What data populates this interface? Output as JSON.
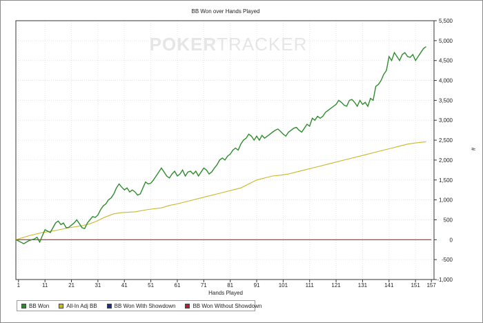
{
  "chart_data": {
    "type": "line",
    "title": "BB Won over Hands Played",
    "xlabel": "Hands Played",
    "ylabel": "#",
    "xlim": [
      0,
      158
    ],
    "ylim": [
      -1000,
      5500
    ],
    "x_ticks": [
      1,
      11,
      21,
      31,
      41,
      51,
      61,
      71,
      81,
      91,
      101,
      111,
      121,
      131,
      141,
      151,
      157
    ],
    "y_ticks": [
      "5,500",
      "5,000",
      "4,500",
      "4,000",
      "3,500",
      "3,000",
      "2,500",
      "2,000",
      "1,500",
      "1,000",
      "500",
      "0",
      "-500",
      "-1,000"
    ],
    "y_tick_values": [
      5500,
      5000,
      4500,
      4000,
      3500,
      3000,
      2500,
      2000,
      1500,
      1000,
      500,
      0,
      -500,
      -1000
    ],
    "legend_position": "bottom-left",
    "grid": true,
    "series": [
      {
        "name": "BB Won",
        "color": "#2e8b2e",
        "points": [
          [
            0,
            0
          ],
          [
            3,
            -100
          ],
          [
            5,
            -20
          ],
          [
            7,
            20
          ],
          [
            8,
            60
          ],
          [
            9,
            -60
          ],
          [
            10,
            100
          ],
          [
            11,
            250
          ],
          [
            13,
            180
          ],
          [
            15,
            420
          ],
          [
            16,
            470
          ],
          [
            17,
            380
          ],
          [
            18,
            420
          ],
          [
            19,
            300
          ],
          [
            20,
            310
          ],
          [
            22,
            420
          ],
          [
            23,
            500
          ],
          [
            24,
            400
          ],
          [
            25,
            300
          ],
          [
            26,
            280
          ],
          [
            27,
            420
          ],
          [
            28,
            500
          ],
          [
            29,
            580
          ],
          [
            30,
            560
          ],
          [
            31,
            620
          ],
          [
            32,
            750
          ],
          [
            33,
            850
          ],
          [
            34,
            900
          ],
          [
            35,
            1000
          ],
          [
            36,
            1050
          ],
          [
            37,
            1150
          ],
          [
            38,
            1300
          ],
          [
            39,
            1400
          ],
          [
            40,
            1320
          ],
          [
            41,
            1250
          ],
          [
            42,
            1300
          ],
          [
            43,
            1200
          ],
          [
            44,
            1250
          ],
          [
            45,
            1200
          ],
          [
            46,
            1120
          ],
          [
            47,
            1150
          ],
          [
            48,
            1300
          ],
          [
            49,
            1450
          ],
          [
            50,
            1400
          ],
          [
            51,
            1420
          ],
          [
            52,
            1500
          ],
          [
            53,
            1600
          ],
          [
            54,
            1700
          ],
          [
            55,
            1800
          ],
          [
            56,
            1700
          ],
          [
            57,
            1600
          ],
          [
            58,
            1550
          ],
          [
            59,
            1650
          ],
          [
            60,
            1720
          ],
          [
            61,
            1600
          ],
          [
            62,
            1650
          ],
          [
            63,
            1750
          ],
          [
            64,
            1600
          ],
          [
            65,
            1700
          ],
          [
            66,
            1720
          ],
          [
            67,
            1650
          ],
          [
            68,
            1720
          ],
          [
            69,
            1600
          ],
          [
            70,
            1700
          ],
          [
            71,
            1800
          ],
          [
            72,
            1750
          ],
          [
            73,
            1650
          ],
          [
            74,
            1700
          ],
          [
            75,
            1800
          ],
          [
            76,
            1880
          ],
          [
            77,
            2000
          ],
          [
            78,
            2050
          ],
          [
            79,
            2000
          ],
          [
            80,
            2100
          ],
          [
            81,
            2150
          ],
          [
            82,
            2250
          ],
          [
            83,
            2300
          ],
          [
            84,
            2250
          ],
          [
            85,
            2400
          ],
          [
            86,
            2500
          ],
          [
            87,
            2550
          ],
          [
            88,
            2650
          ],
          [
            89,
            2600
          ],
          [
            90,
            2500
          ],
          [
            91,
            2600
          ],
          [
            92,
            2500
          ],
          [
            93,
            2620
          ],
          [
            94,
            2550
          ],
          [
            95,
            2600
          ],
          [
            96,
            2650
          ],
          [
            97,
            2700
          ],
          [
            98,
            2750
          ],
          [
            99,
            2780
          ],
          [
            100,
            2720
          ],
          [
            101,
            2650
          ],
          [
            102,
            2600
          ],
          [
            103,
            2700
          ],
          [
            104,
            2750
          ],
          [
            105,
            2800
          ],
          [
            106,
            2820
          ],
          [
            107,
            2750
          ],
          [
            108,
            2700
          ],
          [
            109,
            2800
          ],
          [
            110,
            2900
          ],
          [
            111,
            2850
          ],
          [
            112,
            3050
          ],
          [
            113,
            3000
          ],
          [
            114,
            3100
          ],
          [
            115,
            3050
          ],
          [
            116,
            3100
          ],
          [
            117,
            3200
          ],
          [
            118,
            3250
          ],
          [
            119,
            3300
          ],
          [
            120,
            3350
          ],
          [
            121,
            3400
          ],
          [
            122,
            3500
          ],
          [
            123,
            3450
          ],
          [
            124,
            3380
          ],
          [
            125,
            3350
          ],
          [
            126,
            3500
          ],
          [
            127,
            3520
          ],
          [
            128,
            3450
          ],
          [
            129,
            3350
          ],
          [
            130,
            3500
          ],
          [
            131,
            3400
          ],
          [
            132,
            3450
          ],
          [
            133,
            3350
          ],
          [
            134,
            3550
          ],
          [
            135,
            3500
          ],
          [
            136,
            3850
          ],
          [
            137,
            3900
          ],
          [
            138,
            4000
          ],
          [
            139,
            4150
          ],
          [
            140,
            4250
          ],
          [
            141,
            4600
          ],
          [
            142,
            4500
          ],
          [
            143,
            4700
          ],
          [
            144,
            4600
          ],
          [
            145,
            4500
          ],
          [
            146,
            4650
          ],
          [
            147,
            4700
          ],
          [
            148,
            4600
          ],
          [
            149,
            4580
          ],
          [
            150,
            4650
          ],
          [
            151,
            4500
          ],
          [
            152,
            4600
          ],
          [
            153,
            4700
          ],
          [
            154,
            4800
          ],
          [
            155,
            4850
          ]
        ]
      },
      {
        "name": "All-In Adj BB",
        "color": "#c8b828",
        "points": [
          [
            0,
            0
          ],
          [
            5,
            100
          ],
          [
            10,
            180
          ],
          [
            15,
            230
          ],
          [
            20,
            300
          ],
          [
            25,
            350
          ],
          [
            28,
            400
          ],
          [
            30,
            450
          ],
          [
            31,
            480
          ],
          [
            33,
            550
          ],
          [
            35,
            600
          ],
          [
            37,
            650
          ],
          [
            40,
            680
          ],
          [
            45,
            700
          ],
          [
            50,
            760
          ],
          [
            55,
            800
          ],
          [
            58,
            860
          ],
          [
            61,
            900
          ],
          [
            64,
            950
          ],
          [
            67,
            1000
          ],
          [
            70,
            1050
          ],
          [
            73,
            1100
          ],
          [
            76,
            1150
          ],
          [
            79,
            1200
          ],
          [
            82,
            1250
          ],
          [
            85,
            1300
          ],
          [
            88,
            1400
          ],
          [
            91,
            1500
          ],
          [
            94,
            1550
          ],
          [
            97,
            1600
          ],
          [
            100,
            1620
          ],
          [
            103,
            1650
          ],
          [
            106,
            1700
          ],
          [
            109,
            1750
          ],
          [
            112,
            1800
          ],
          [
            115,
            1850
          ],
          [
            118,
            1900
          ],
          [
            121,
            1950
          ],
          [
            124,
            2000
          ],
          [
            127,
            2050
          ],
          [
            130,
            2100
          ],
          [
            133,
            2150
          ],
          [
            136,
            2200
          ],
          [
            139,
            2250
          ],
          [
            142,
            2300
          ],
          [
            145,
            2350
          ],
          [
            148,
            2400
          ],
          [
            151,
            2430
          ],
          [
            155,
            2460
          ]
        ]
      },
      {
        "name": "BB Won With Showdown",
        "color": "#1a2e8a",
        "points": []
      },
      {
        "name": "BB Won Without Showdown",
        "color": "#b22222",
        "points": [
          [
            0,
            0
          ],
          [
            157,
            0
          ]
        ]
      }
    ]
  },
  "watermark": {
    "text_bold": "POKER",
    "text_light": "TRACKER"
  }
}
